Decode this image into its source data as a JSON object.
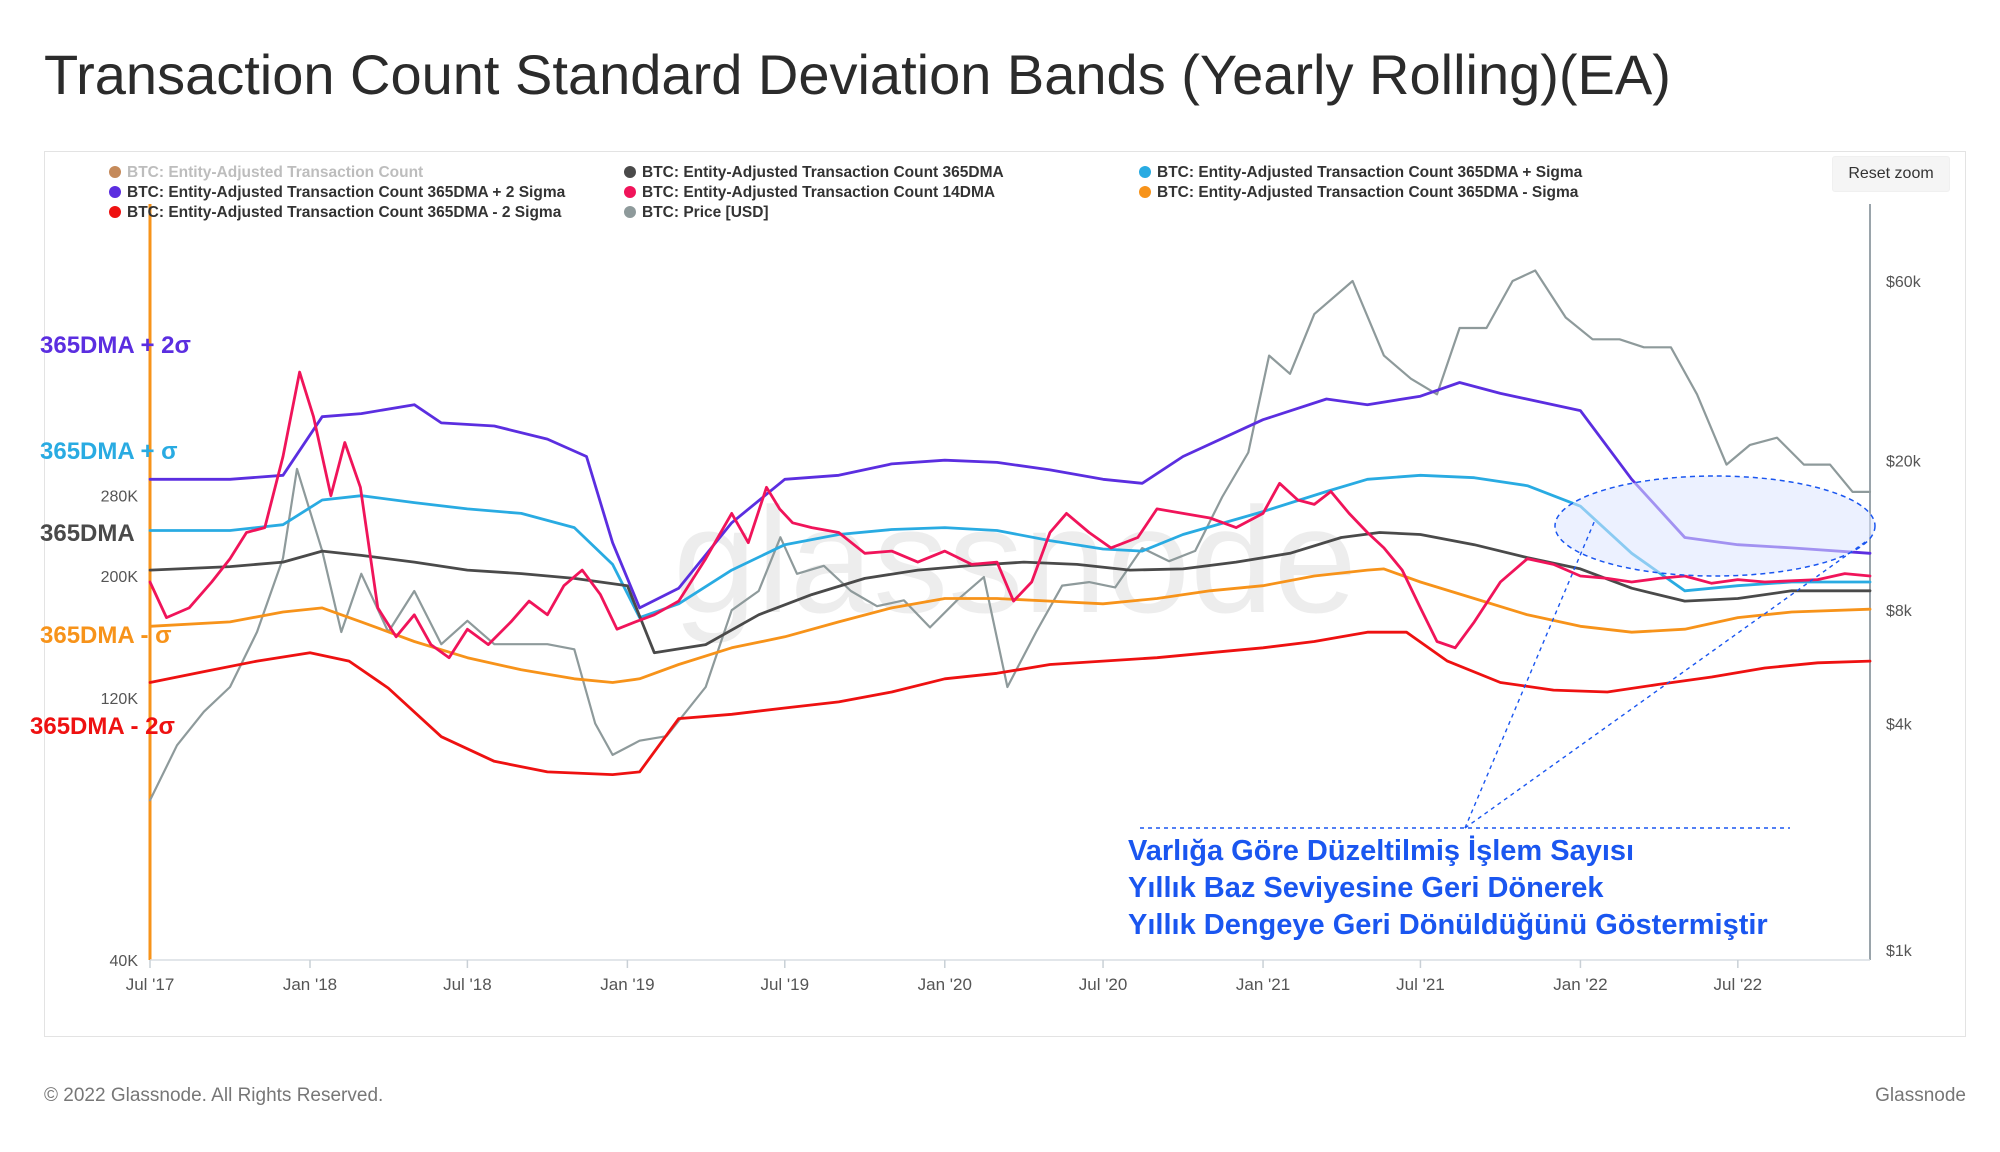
{
  "page": {
    "title": "Transaction Count Standard Deviation Bands (Yearly Rolling)(EA)",
    "reset_zoom": "Reset zoom",
    "footer_left": "© 2022 Glassnode. All Rights Reserved.",
    "footer_right": "Glassnode",
    "watermark": "glassnode"
  },
  "colors": {
    "count": "#c58a5a",
    "dma365": "#4a4a4a",
    "plus_sigma": "#29abe2",
    "plus_2sigma": "#5b2ee0",
    "dma14": "#f0145a",
    "minus_sigma": "#f7931a",
    "minus_2sigma": "#ee1111",
    "price": "#8e9a9b",
    "annotation": "#1a56f0",
    "highlight_fill": "#dce6ff"
  },
  "chart_data": {
    "type": "line",
    "title": "Transaction Count Standard Deviation Bands (Yearly Rolling)(EA)",
    "x_tick_labels": [
      "Jul '17",
      "Jan '18",
      "Jul '18",
      "Jan '19",
      "Jul '19",
      "Jan '20",
      "Jul '20",
      "Jan '21",
      "Jul '21",
      "Jan '22",
      "Jul '22"
    ],
    "x_range": [
      "2017-07-01",
      "2022-11-30"
    ],
    "left_axis": {
      "scale": "log",
      "range": [
        40000,
        600000
      ],
      "tick_labels": [
        "40K",
        "120K",
        "200K",
        "280K"
      ],
      "tick_values": [
        40000,
        120000,
        200000,
        280000
      ]
    },
    "right_axis": {
      "scale": "log",
      "range": [
        1000,
        80000
      ],
      "tick_labels": [
        "$1k",
        "$4k",
        "$8k",
        "$20k",
        "$60k"
      ],
      "tick_values": [
        1000,
        4000,
        8000,
        20000,
        60000
      ]
    },
    "legend_position": "top",
    "grid": false,
    "legend": [
      {
        "name": "BTC: Entity-Adjusted Transaction Count",
        "color_key": "count",
        "hidden": true
      },
      {
        "name": "BTC: Entity-Adjusted Transaction Count 365DMA",
        "color_key": "dma365"
      },
      {
        "name": "BTC: Entity-Adjusted Transaction Count 365DMA + Sigma",
        "color_key": "plus_sigma"
      },
      {
        "name": "BTC: Entity-Adjusted Transaction Count 365DMA + 2 Sigma",
        "color_key": "plus_2sigma"
      },
      {
        "name": "BTC: Entity-Adjusted Transaction Count 14DMA",
        "color_key": "dma14"
      },
      {
        "name": "BTC: Entity-Adjusted Transaction Count 365DMA - Sigma",
        "color_key": "minus_sigma"
      },
      {
        "name": "BTC: Entity-Adjusted Transaction Count 365DMA - 2 Sigma",
        "color_key": "minus_2sigma"
      },
      {
        "name": "BTC: Price [USD]",
        "color_key": "price"
      }
    ],
    "series": [
      {
        "name": "BTC: Entity-Adjusted Transaction Count 365DMA + 2 Sigma",
        "color_key": "plus_2sigma",
        "axis": "left",
        "x": [
          "2017-07-01",
          "2017-10-01",
          "2017-12-01",
          "2018-01-15",
          "2018-03-01",
          "2018-05-01",
          "2018-06-01",
          "2018-08-01",
          "2018-10-01",
          "2018-11-15",
          "2018-12-15",
          "2019-01-15",
          "2019-03-01",
          "2019-05-01",
          "2019-07-01",
          "2019-09-01",
          "2019-11-01",
          "2020-01-01",
          "2020-03-01",
          "2020-05-01",
          "2020-07-01",
          "2020-08-15",
          "2020-10-01",
          "2021-01-01",
          "2021-03-15",
          "2021-05-01",
          "2021-07-01",
          "2021-08-15",
          "2021-10-01",
          "2022-01-01",
          "2022-03-01",
          "2022-05-01",
          "2022-07-01",
          "2022-09-01",
          "2022-11-30"
        ],
        "values": [
          300000,
          300000,
          305000,
          390000,
          395000,
          410000,
          380000,
          375000,
          355000,
          330000,
          230000,
          175000,
          190000,
          250000,
          300000,
          305000,
          320000,
          325000,
          322000,
          312000,
          300000,
          295000,
          330000,
          385000,
          420000,
          410000,
          425000,
          450000,
          430000,
          400000,
          300000,
          235000,
          228000,
          225000,
          220000
        ]
      },
      {
        "name": "BTC: Entity-Adjusted Transaction Count 365DMA + Sigma",
        "color_key": "plus_sigma",
        "axis": "left",
        "x": [
          "2017-07-01",
          "2017-10-01",
          "2017-12-01",
          "2018-01-15",
          "2018-03-01",
          "2018-05-01",
          "2018-07-01",
          "2018-09-01",
          "2018-11-01",
          "2018-12-15",
          "2019-01-15",
          "2019-03-01",
          "2019-05-01",
          "2019-07-01",
          "2019-09-01",
          "2019-11-01",
          "2020-01-01",
          "2020-03-01",
          "2020-05-01",
          "2020-07-01",
          "2020-08-15",
          "2020-10-01",
          "2021-01-01",
          "2021-03-15",
          "2021-05-01",
          "2021-07-01",
          "2021-09-01",
          "2021-11-01",
          "2022-01-01",
          "2022-03-01",
          "2022-05-01",
          "2022-07-01",
          "2022-09-01",
          "2022-11-30"
        ],
        "values": [
          242000,
          242000,
          248000,
          275000,
          280000,
          272000,
          265000,
          260000,
          245000,
          210000,
          168000,
          178000,
          205000,
          228000,
          238000,
          243000,
          245000,
          242000,
          232000,
          224000,
          222000,
          238000,
          262000,
          285000,
          300000,
          305000,
          302000,
          292000,
          268000,
          220000,
          188000,
          192000,
          195000,
          195000
        ]
      },
      {
        "name": "BTC: Entity-Adjusted Transaction Count 365DMA",
        "color_key": "dma365",
        "axis": "left",
        "x": [
          "2017-07-01",
          "2017-10-01",
          "2017-12-01",
          "2018-01-15",
          "2018-03-01",
          "2018-05-01",
          "2018-07-01",
          "2018-09-01",
          "2018-11-01",
          "2019-01-01",
          "2019-02-01",
          "2019-04-01",
          "2019-06-01",
          "2019-08-01",
          "2019-10-01",
          "2019-12-01",
          "2020-02-01",
          "2020-04-01",
          "2020-06-01",
          "2020-08-01",
          "2020-10-01",
          "2020-12-01",
          "2021-02-01",
          "2021-04-01",
          "2021-05-15",
          "2021-07-01",
          "2021-09-01",
          "2021-11-01",
          "2022-01-01",
          "2022-03-01",
          "2022-05-01",
          "2022-07-01",
          "2022-09-01",
          "2022-11-30"
        ],
        "values": [
          205000,
          208000,
          212000,
          222000,
          218000,
          212000,
          205000,
          202000,
          198000,
          192000,
          145000,
          150000,
          170000,
          185000,
          198000,
          205000,
          209000,
          212000,
          210000,
          205000,
          206000,
          212000,
          220000,
          235000,
          240000,
          238000,
          228000,
          216000,
          206000,
          190000,
          180000,
          182000,
          188000,
          188000
        ]
      },
      {
        "name": "BTC: Entity-Adjusted Transaction Count 365DMA - Sigma",
        "color_key": "minus_sigma",
        "axis": "left",
        "x": [
          "2017-07-01",
          "2017-10-01",
          "2017-12-01",
          "2018-01-15",
          "2018-03-01",
          "2018-05-01",
          "2018-07-01",
          "2018-09-01",
          "2018-11-01",
          "2018-12-15",
          "2019-01-15",
          "2019-03-01",
          "2019-05-01",
          "2019-07-01",
          "2019-09-01",
          "2019-11-01",
          "2020-01-01",
          "2020-03-01",
          "2020-05-01",
          "2020-07-01",
          "2020-09-01",
          "2020-11-01",
          "2021-01-01",
          "2021-03-01",
          "2021-05-01",
          "2021-05-20",
          "2021-07-01",
          "2021-09-01",
          "2021-11-01",
          "2022-01-01",
          "2022-03-01",
          "2022-05-01",
          "2022-07-01",
          "2022-09-01",
          "2022-11-30"
        ],
        "values": [
          162000,
          165000,
          172000,
          175000,
          165000,
          152000,
          142000,
          135000,
          130000,
          128000,
          130000,
          138000,
          148000,
          155000,
          165000,
          175000,
          182000,
          182000,
          180000,
          178000,
          182000,
          188000,
          192000,
          200000,
          205000,
          206000,
          195000,
          182000,
          170000,
          162000,
          158000,
          160000,
          168000,
          172000,
          174000
        ]
      },
      {
        "name": "BTC: Entity-Adjusted Transaction Count 365DMA - 2 Sigma",
        "color_key": "minus_2sigma",
        "axis": "left",
        "x": [
          "2017-07-01",
          "2017-09-01",
          "2017-11-01",
          "2018-01-01",
          "2018-02-15",
          "2018-04-01",
          "2018-06-01",
          "2018-08-01",
          "2018-10-01",
          "2018-12-15",
          "2019-01-15",
          "2019-03-01",
          "2019-05-01",
          "2019-07-01",
          "2019-09-01",
          "2019-11-01",
          "2020-01-01",
          "2020-03-01",
          "2020-05-01",
          "2020-07-01",
          "2020-09-01",
          "2020-11-01",
          "2021-01-01",
          "2021-03-01",
          "2021-05-01",
          "2021-06-15",
          "2021-08-01",
          "2021-10-01",
          "2021-12-01",
          "2022-02-01",
          "2022-04-01",
          "2022-06-01",
          "2022-08-01",
          "2022-10-01",
          "2022-11-30"
        ],
        "values": [
          128000,
          134000,
          140000,
          145000,
          140000,
          125000,
          102000,
          92000,
          88000,
          87000,
          88000,
          110000,
          112000,
          115000,
          118000,
          123000,
          130000,
          133000,
          138000,
          140000,
          142000,
          145000,
          148000,
          152000,
          158000,
          158000,
          140000,
          128000,
          124000,
          123000,
          127000,
          131000,
          136000,
          139000,
          140000
        ]
      },
      {
        "name": "BTC: Entity-Adjusted Transaction Count 14DMA",
        "color_key": "dma14",
        "axis": "left",
        "x": [
          "2017-07-01",
          "2017-07-20",
          "2017-08-15",
          "2017-09-10",
          "2017-10-01",
          "2017-10-20",
          "2017-11-10",
          "2017-12-01",
          "2017-12-20",
          "2018-01-05",
          "2018-01-25",
          "2018-02-10",
          "2018-02-28",
          "2018-03-20",
          "2018-04-10",
          "2018-05-01",
          "2018-05-20",
          "2018-06-10",
          "2018-07-01",
          "2018-07-25",
          "2018-08-20",
          "2018-09-10",
          "2018-10-01",
          "2018-10-20",
          "2018-11-10",
          "2018-12-01",
          "2018-12-20",
          "2019-01-10",
          "2019-02-01",
          "2019-03-01",
          "2019-04-01",
          "2019-05-01",
          "2019-05-20",
          "2019-06-10",
          "2019-06-25",
          "2019-07-10",
          "2019-08-01",
          "2019-09-01",
          "2019-10-01",
          "2019-11-01",
          "2019-12-01",
          "2020-01-01",
          "2020-02-01",
          "2020-03-01",
          "2020-03-20",
          "2020-04-10",
          "2020-05-01",
          "2020-05-20",
          "2020-06-15",
          "2020-07-10",
          "2020-08-10",
          "2020-09-01",
          "2020-10-01",
          "2020-11-01",
          "2020-12-01",
          "2021-01-01",
          "2021-01-20",
          "2021-02-10",
          "2021-03-01",
          "2021-03-20",
          "2021-04-10",
          "2021-05-01",
          "2021-05-20",
          "2021-06-10",
          "2021-07-01",
          "2021-07-20",
          "2021-08-10",
          "2021-09-01",
          "2021-10-01",
          "2021-11-01",
          "2021-12-01",
          "2022-01-01",
          "2022-02-01",
          "2022-03-01",
          "2022-04-01",
          "2022-05-01",
          "2022-06-01",
          "2022-07-01",
          "2022-08-01",
          "2022-09-01",
          "2022-10-01",
          "2022-11-01",
          "2022-11-30"
        ],
        "values": [
          195000,
          168000,
          175000,
          195000,
          215000,
          240000,
          245000,
          330000,
          470000,
          390000,
          280000,
          350000,
          290000,
          175000,
          155000,
          170000,
          150000,
          142000,
          160000,
          150000,
          165000,
          180000,
          170000,
          192000,
          205000,
          185000,
          160000,
          165000,
          170000,
          180000,
          215000,
          260000,
          230000,
          290000,
          265000,
          250000,
          245000,
          240000,
          220000,
          222000,
          212000,
          222000,
          210000,
          212000,
          180000,
          195000,
          240000,
          260000,
          240000,
          225000,
          235000,
          265000,
          260000,
          255000,
          245000,
          260000,
          295000,
          275000,
          270000,
          285000,
          260000,
          240000,
          225000,
          205000,
          175000,
          152000,
          148000,
          165000,
          195000,
          215000,
          210000,
          200000,
          198000,
          195000,
          198000,
          200000,
          194000,
          197000,
          195000,
          196000,
          197000,
          202000,
          200000
        ]
      },
      {
        "name": "BTC: Price [USD]",
        "color_key": "price",
        "axis": "right",
        "x": [
          "2017-07-01",
          "2017-08-01",
          "2017-09-01",
          "2017-10-01",
          "2017-11-01",
          "2017-12-01",
          "2017-12-17",
          "2018-01-15",
          "2018-02-06",
          "2018-03-01",
          "2018-04-01",
          "2018-05-01",
          "2018-06-01",
          "2018-07-01",
          "2018-08-01",
          "2018-09-01",
          "2018-10-01",
          "2018-11-01",
          "2018-11-25",
          "2018-12-15",
          "2019-01-15",
          "2019-02-15",
          "2019-04-01",
          "2019-05-01",
          "2019-06-01",
          "2019-06-26",
          "2019-07-15",
          "2019-08-15",
          "2019-09-15",
          "2019-10-15",
          "2019-11-15",
          "2019-12-15",
          "2020-01-15",
          "2020-02-15",
          "2020-03-13",
          "2020-04-15",
          "2020-05-15",
          "2020-06-15",
          "2020-07-15",
          "2020-08-15",
          "2020-09-15",
          "2020-10-15",
          "2020-11-15",
          "2020-12-15",
          "2021-01-08",
          "2021-02-01",
          "2021-03-01",
          "2021-04-14",
          "2021-05-20",
          "2021-06-20",
          "2021-07-20",
          "2021-08-15",
          "2021-09-15",
          "2021-10-15",
          "2021-11-10",
          "2021-12-15",
          "2022-01-15",
          "2022-02-15",
          "2022-03-15",
          "2022-04-15",
          "2022-05-15",
          "2022-06-18",
          "2022-07-15",
          "2022-08-15",
          "2022-09-15",
          "2022-10-15",
          "2022-11-10",
          "2022-11-30"
        ],
        "values": [
          2500,
          3500,
          4300,
          5000,
          7000,
          11000,
          19000,
          11500,
          7000,
          10000,
          7000,
          9000,
          6500,
          7500,
          6500,
          6500,
          6500,
          6300,
          4000,
          3300,
          3600,
          3700,
          5000,
          8000,
          9000,
          12500,
          10000,
          10500,
          9000,
          8200,
          8500,
          7200,
          8500,
          9800,
          5000,
          7000,
          9300,
          9500,
          9200,
          11700,
          10800,
          11500,
          16000,
          21000,
          38000,
          34000,
          49000,
          60000,
          38000,
          33000,
          30000,
          45000,
          45000,
          60000,
          64000,
          48000,
          42000,
          42000,
          40000,
          40000,
          30000,
          19500,
          22000,
          23000,
          19500,
          19500,
          16500,
          16500
        ]
      }
    ],
    "left_labels": [
      {
        "text": "365DMA + 2σ",
        "color_key": "plus_2sigma"
      },
      {
        "text": "365DMA + σ",
        "color_key": "plus_sigma"
      },
      {
        "text": "365DMA",
        "color_key": "dma365"
      },
      {
        "text": "365DMA - σ",
        "color_key": "minus_sigma"
      },
      {
        "text": "365DMA - 2σ",
        "color_key": "minus_2sigma"
      }
    ],
    "annotation": {
      "lines": [
        "Varlığa Göre Düzeltilmiş İşlem Sayısı",
        "Yıllık Baz Seviyesine Geri Dönerek",
        "Yıllık Dengeye Geri Dönüldüğünü Göstermiştir"
      ]
    }
  }
}
